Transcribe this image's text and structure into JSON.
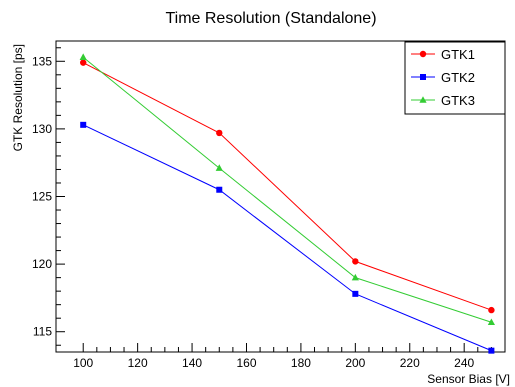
{
  "chart_data": {
    "type": "line",
    "title": "Time Resolution (Standalone)",
    "xlabel": "Sensor Bias [V]",
    "ylabel": "GTK Resolution [ps]",
    "xlim": [
      90,
      255
    ],
    "ylim": [
      113.5,
      136.5
    ],
    "x_ticks": [
      100,
      120,
      140,
      160,
      180,
      200,
      220,
      240
    ],
    "y_ticks": [
      115,
      120,
      125,
      130,
      135
    ],
    "grid": false,
    "legend_position": "top-right",
    "x": [
      100,
      150,
      200,
      250
    ],
    "series": [
      {
        "name": "GTK1",
        "color": "#ff0000",
        "marker": "circle",
        "values": [
          134.9,
          129.7,
          120.2,
          116.6
        ]
      },
      {
        "name": "GTK2",
        "color": "#0000ff",
        "marker": "square",
        "values": [
          130.3,
          125.5,
          117.8,
          113.6
        ]
      },
      {
        "name": "GTK3",
        "color": "#33cc33",
        "marker": "triangle",
        "values": [
          135.3,
          127.1,
          119.0,
          115.7
        ]
      }
    ]
  }
}
